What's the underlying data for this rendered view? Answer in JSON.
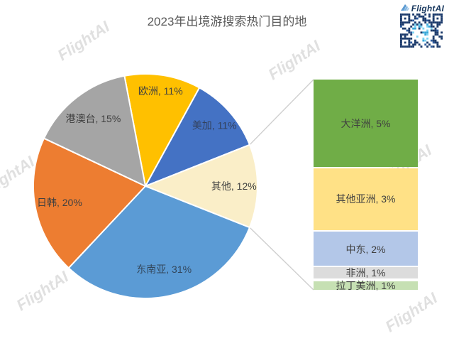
{
  "header": {
    "title": "2023年出境游搜索热门目的地",
    "title_color": "#595959",
    "brand": {
      "name": "FlightAI",
      "color": "#17375E"
    }
  },
  "watermark": {
    "text": "FlightAI",
    "color": "#DBDBDB"
  },
  "icons": {
    "wing_colors": [
      "#5D9BD2",
      "#7EB3E0",
      "#A9CCE9"
    ],
    "qr_dark": "#1B3A6B",
    "qr_mid": "#2C5A9E",
    "qr_cyan": "#39A7D8",
    "qr_light_cyan": "#7ED3F2"
  },
  "chart_data": {
    "type": "pie",
    "subtype": "pie-of-pie",
    "title": "2023年出境游搜索热门目的地",
    "label_format": "{category}, {value}%",
    "start_angle_deg": -10.8,
    "slice_border_color": "#ffffff",
    "connector_color": "#CFCFCF",
    "pie_series": [
      {
        "category": "欧洲",
        "value": 11,
        "color": "#FFC000",
        "label_color": "#404040",
        "breakdown": false
      },
      {
        "category": "美加",
        "value": 11,
        "color": "#4472C4",
        "label_color": "#33415C",
        "breakdown": false
      },
      {
        "category": "其他",
        "value": 12,
        "color": "#FAEEC8",
        "label_color": "#404040",
        "breakdown": true
      },
      {
        "category": "东南亚",
        "value": 31,
        "color": "#5B9BD5",
        "label_color": "#33475C",
        "breakdown": false
      },
      {
        "category": "日韩",
        "value": 20,
        "color": "#ED7D31",
        "label_color": "#404040",
        "breakdown": false
      },
      {
        "category": "港澳台",
        "value": 15,
        "color": "#A5A5A5",
        "label_color": "#404040",
        "breakdown": false
      }
    ],
    "bar_series": [
      {
        "category": "大洋洲",
        "value": 5,
        "color": "#70AD47",
        "label_color": "#404040"
      },
      {
        "category": "其他亚洲",
        "value": 3,
        "color": "#FFE186",
        "label_color": "#404040"
      },
      {
        "category": "中东",
        "value": 2,
        "color": "#B3C7E8",
        "label_color": "#404040"
      },
      {
        "category": "非洲",
        "value": 1,
        "color": "#DCDCDC",
        "label_color": "#404040"
      },
      {
        "category": "拉丁美洲",
        "value": 1,
        "color": "#C6E0B3",
        "label_color": "#404040"
      }
    ]
  }
}
